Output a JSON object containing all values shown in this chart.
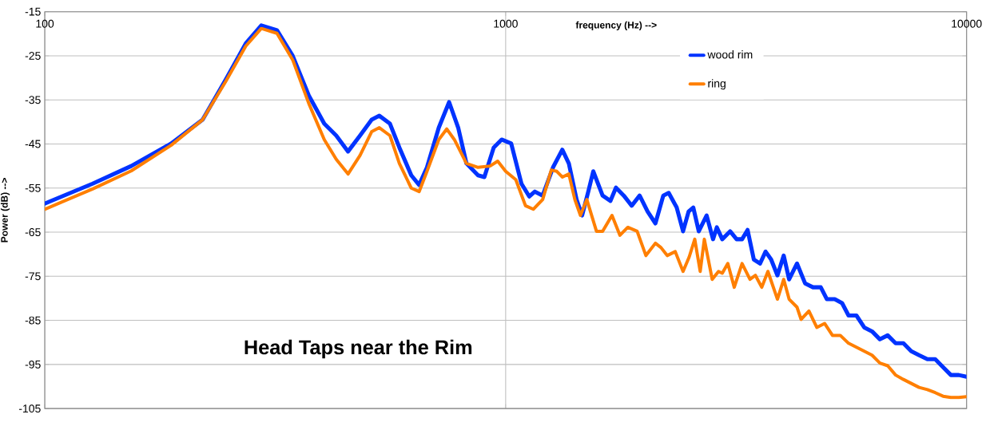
{
  "chart_data": {
    "type": "line",
    "xlabel": "frequency (Hz)  -->",
    "ylabel": "Power  (dB)  -->",
    "log": "x",
    "xlim": [
      100,
      10000
    ],
    "xticks": [
      100,
      1000,
      10000
    ],
    "ylim": [
      -105,
      -15
    ],
    "yticks": [
      -15,
      -25,
      -35,
      -45,
      -55,
      -65,
      -75,
      -85,
      -95,
      -105
    ],
    "grid": true,
    "legend": "top right",
    "line_style": "solid",
    "marker": "none",
    "annotations": [
      "Head Taps near the Rim"
    ],
    "series": [
      {
        "name": "wood rim",
        "color": "#0033ff",
        "x": [
          100,
          127,
          154,
          188,
          220,
          247,
          273,
          295,
          319,
          345,
          374,
          404,
          429,
          455,
          483,
          512,
          532,
          561,
          588,
          624,
          649,
          675,
          716,
          754,
          789,
          822,
          871,
          899,
          942,
          980,
          1028,
          1082,
          1125,
          1157,
          1203,
          1267,
          1327,
          1371,
          1425,
          1465,
          1511,
          1549,
          1623,
          1688,
          1735,
          1804,
          1877,
          1953,
          2032,
          2113,
          2198,
          2258,
          2350,
          2426,
          2494,
          2553,
          2624,
          2729,
          2818,
          2872,
          2951,
          3069,
          3170,
          3258,
          3349,
          3455,
          3565,
          3664,
          3767,
          3888,
          4011,
          4121,
          4286,
          4463,
          4643,
          4827,
          4977,
          5176,
          5370,
          5546,
          5768,
          5998,
          6237,
          6486,
          6745,
          7015,
          7295,
          7586,
          7888,
          8222,
          8551,
          8892,
          9247,
          9616,
          10000
        ],
        "values": [
          -58.5,
          -54.0,
          -50.0,
          -44.9,
          -39.5,
          -30.4,
          -22.2,
          -18.1,
          -19.2,
          -25.0,
          -34.0,
          -40.4,
          -43.1,
          -46.7,
          -43.1,
          -39.5,
          -38.6,
          -40.4,
          -45.8,
          -52.1,
          -54.3,
          -50.3,
          -41.3,
          -35.5,
          -41.3,
          -49.4,
          -52.1,
          -52.5,
          -45.8,
          -44.0,
          -44.9,
          -54.0,
          -56.9,
          -55.8,
          -56.7,
          -50.3,
          -46.3,
          -49.4,
          -57.6,
          -61.2,
          -55.8,
          -51.2,
          -56.7,
          -57.9,
          -54.9,
          -56.7,
          -59.0,
          -56.7,
          -60.3,
          -63.0,
          -56.7,
          -56.1,
          -59.4,
          -64.8,
          -60.3,
          -59.4,
          -64.8,
          -61.2,
          -66.6,
          -63.9,
          -66.6,
          -64.8,
          -66.6,
          -66.6,
          -64.5,
          -71.2,
          -72.1,
          -69.4,
          -71.2,
          -74.8,
          -70.3,
          -75.7,
          -72.1,
          -76.6,
          -77.5,
          -77.5,
          -80.2,
          -80.2,
          -81.1,
          -83.9,
          -83.9,
          -86.6,
          -87.5,
          -89.3,
          -88.4,
          -90.2,
          -90.2,
          -92.0,
          -92.9,
          -93.8,
          -93.8,
          -95.6,
          -97.4,
          -97.4,
          -97.8
        ]
      },
      {
        "name": "ring",
        "color": "#ff7f00",
        "x": [
          100,
          127,
          154,
          188,
          220,
          247,
          273,
          295,
          319,
          345,
          374,
          404,
          429,
          455,
          483,
          512,
          532,
          561,
          588,
          624,
          649,
          675,
          716,
          745,
          774,
          822,
          871,
          925,
          961,
          1000,
          1052,
          1104,
          1148,
          1203,
          1256,
          1291,
          1327,
          1371,
          1413,
          1453,
          1500,
          1574,
          1623,
          1701,
          1770,
          1841,
          1929,
          2015,
          2113,
          2173,
          2241,
          2333,
          2426,
          2502,
          2572,
          2643,
          2698,
          2806,
          2896,
          2951,
          3034,
          3133,
          3258,
          3389,
          3483,
          3595,
          3707,
          3888,
          4011,
          4121,
          4286,
          4375,
          4550,
          4732,
          4920,
          5117,
          5321,
          5546,
          5768,
          5998,
          6237,
          6486,
          6745,
          7015,
          7295,
          7586,
          7888,
          8222,
          8551,
          8892,
          9247,
          9616,
          10000
        ],
        "values": [
          -59.8,
          -55.2,
          -51.1,
          -45.3,
          -39.5,
          -30.8,
          -22.8,
          -18.8,
          -19.9,
          -25.9,
          -35.8,
          -44.0,
          -48.5,
          -51.8,
          -47.6,
          -42.2,
          -41.3,
          -43.1,
          -49.4,
          -55.0,
          -55.8,
          -51.2,
          -44.0,
          -41.6,
          -44.0,
          -49.4,
          -50.3,
          -50.0,
          -48.9,
          -51.2,
          -53.1,
          -59.0,
          -59.8,
          -57.6,
          -50.9,
          -51.2,
          -52.5,
          -51.8,
          -57.6,
          -61.2,
          -57.6,
          -64.8,
          -64.8,
          -61.2,
          -65.7,
          -63.9,
          -64.8,
          -70.3,
          -67.5,
          -68.5,
          -70.3,
          -69.4,
          -73.9,
          -70.6,
          -66.6,
          -73.9,
          -66.6,
          -75.7,
          -73.9,
          -74.3,
          -72.1,
          -77.5,
          -72.1,
          -75.7,
          -74.8,
          -77.5,
          -73.9,
          -80.2,
          -75.7,
          -80.2,
          -82.0,
          -84.8,
          -82.9,
          -86.6,
          -85.7,
          -88.4,
          -88.4,
          -90.2,
          -91.1,
          -92.0,
          -92.9,
          -94.7,
          -95.3,
          -97.4,
          -98.4,
          -99.3,
          -100.2,
          -100.7,
          -101.4,
          -102.2,
          -102.5,
          -102.5,
          -102.3
        ]
      }
    ]
  }
}
